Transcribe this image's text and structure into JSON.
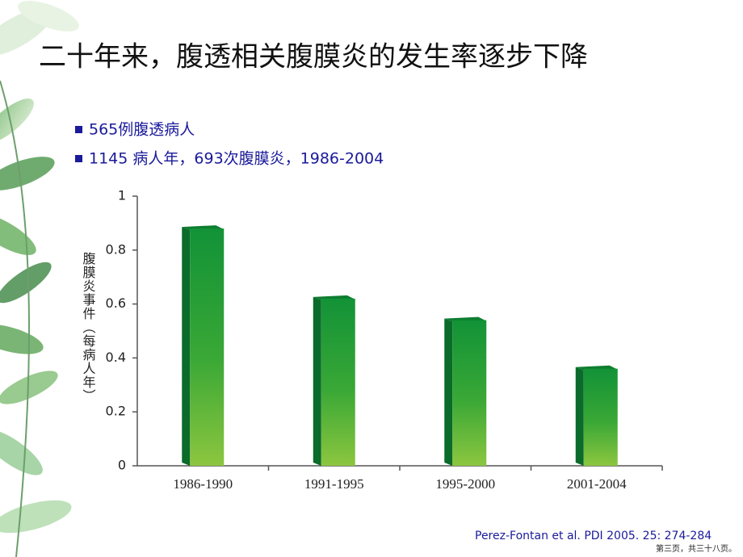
{
  "chart_data": {
    "type": "bar",
    "title": "二十年来，腹透相关腹膜炎的发生率逐步下降",
    "y_label": "腹膜炎事件（每病人年）",
    "categories": [
      "1986-1990",
      "1991-1995",
      "1995-2000",
      "2001-2004"
    ],
    "values": [
      0.88,
      0.62,
      0.54,
      0.36
    ],
    "color": "#129237",
    "ylim": [
      0,
      1
    ],
    "yticks": [
      0,
      0.2,
      0.4,
      0.6,
      0.8,
      1
    ]
  },
  "bullets": [
    "565例腹透病人",
    "1145 病人年，693次腹膜炎，1986-2004"
  ],
  "citation": "Perez-Fontan et al. PDI 2005. 25: 274-284",
  "footer": "第三页，共三十八页。"
}
